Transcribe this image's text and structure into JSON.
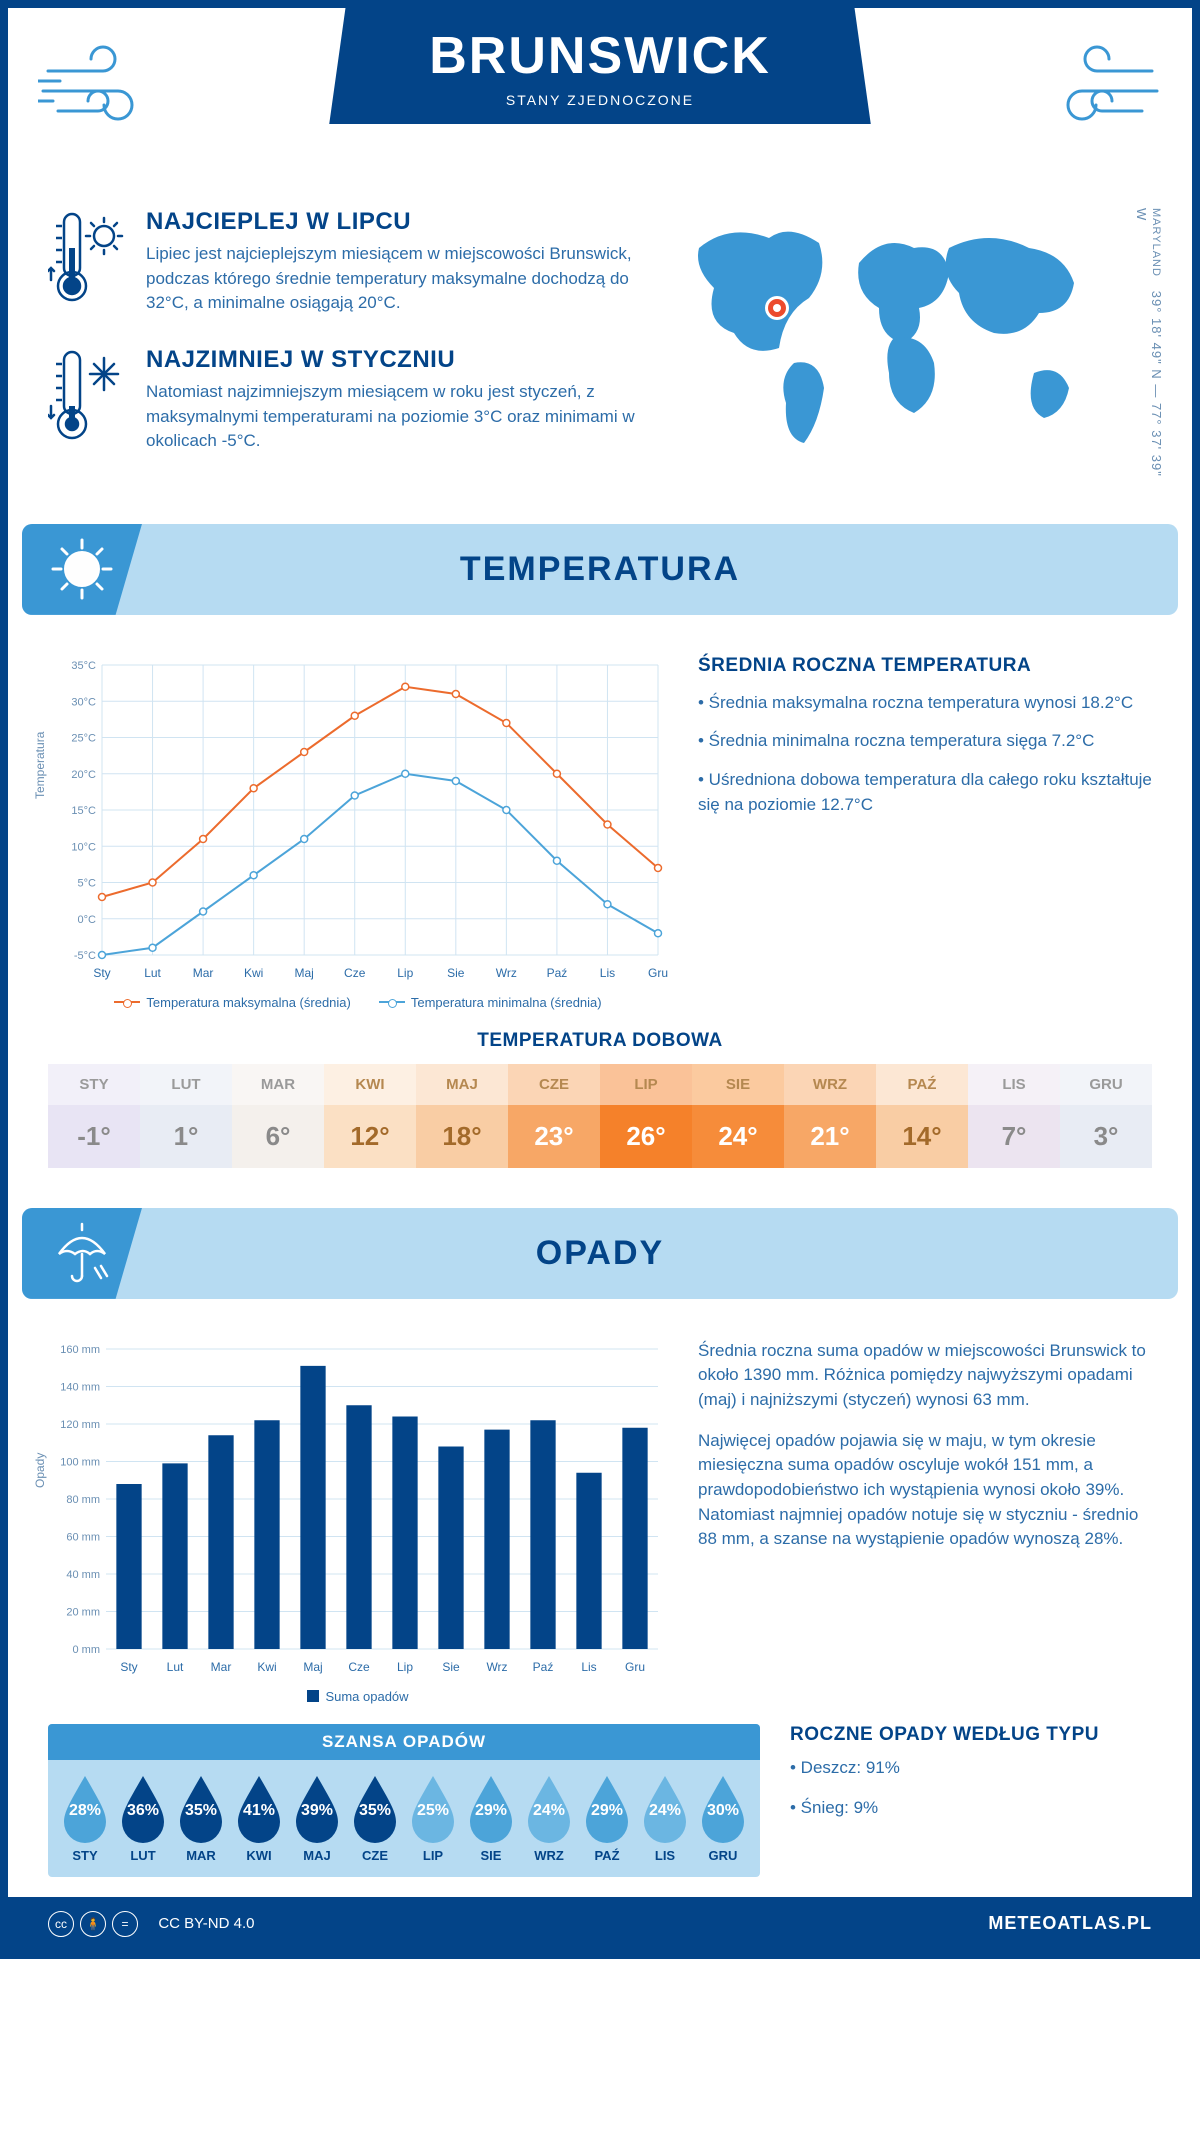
{
  "header": {
    "title": "BRUNSWICK",
    "subtitle": "STANY ZJEDNOCZONE"
  },
  "coords": {
    "state": "MARYLAND",
    "lat": "39° 18' 49\" N",
    "sep": "—",
    "lon": "77° 37' 39\" W"
  },
  "colors": {
    "primary": "#034488",
    "light_blue": "#b6dbf2",
    "mid_blue": "#3a97d4",
    "accent_blue": "#2c6ca8",
    "orange": "#ec6b2d",
    "marker_bg": "#ffffff"
  },
  "info_hot": {
    "title": "NAJCIEPLEJ W LIPCU",
    "text": "Lipiec jest najcieplejszym miesiącem w miejscowości Brunswick, podczas którego średnie temperatury maksymalne dochodzą do 32°C, a minimalne osiągają 20°C."
  },
  "info_cold": {
    "title": "NAJZIMNIEJ W STYCZNIU",
    "text": "Natomiast najzimniejszym miesiącem w roku jest styczeń, z maksymalnymi temperaturami na poziomie 3°C oraz minimami w okolicach -5°C."
  },
  "section_temp": "TEMPERATURA",
  "section_rain": "OPADY",
  "months": [
    "Sty",
    "Lut",
    "Mar",
    "Kwi",
    "Maj",
    "Cze",
    "Lip",
    "Sie",
    "Wrz",
    "Paź",
    "Lis",
    "Gru"
  ],
  "months_upper": [
    "STY",
    "LUT",
    "MAR",
    "KWI",
    "MAJ",
    "CZE",
    "LIP",
    "SIE",
    "WRZ",
    "PAŹ",
    "LIS",
    "GRU"
  ],
  "temp_chart": {
    "type": "line",
    "ylabel": "Temperatura",
    "ylim": [
      -5,
      35
    ],
    "ytick_step": 5,
    "ytick_labels": [
      "-5°C",
      "0°C",
      "5°C",
      "10°C",
      "15°C",
      "20°C",
      "25°C",
      "30°C",
      "35°C"
    ],
    "max_series": [
      3,
      5,
      11,
      18,
      23,
      28,
      32,
      31,
      27,
      20,
      13,
      7
    ],
    "min_series": [
      -5,
      -4,
      1,
      6,
      11,
      17,
      20,
      19,
      15,
      8,
      2,
      -2
    ],
    "max_color": "#ec6b2d",
    "min_color": "#4ca4d9",
    "grid_color": "#d0e4f2",
    "line_width": 2,
    "marker_radius": 3.5,
    "legend_max": "Temperatura maksymalna (średnia)",
    "legend_min": "Temperatura minimalna (średnia)"
  },
  "temp_info": {
    "title": "ŚREDNIA ROCZNA TEMPERATURA",
    "p1": "• Średnia maksymalna roczna temperatura wynosi 18.2°C",
    "p2": "• Średnia minimalna roczna temperatura sięga 7.2°C",
    "p3": "• Uśredniona dobowa temperatura dla całego roku kształtuje się na poziomie 12.7°C"
  },
  "temp_daily": {
    "title": "TEMPERATURA DOBOWA",
    "values": [
      "-1°",
      "1°",
      "6°",
      "12°",
      "18°",
      "23°",
      "26°",
      "24°",
      "21°",
      "14°",
      "7°",
      "3°"
    ],
    "cell_bg": [
      "#e8e4f4",
      "#e8ecf4",
      "#f4f0ec",
      "#fbe0c4",
      "#f9cda4",
      "#f7a766",
      "#f5812a",
      "#f68c3a",
      "#f7a766",
      "#f9cda4",
      "#ece4f0",
      "#e8ecf4"
    ],
    "head_bg": [
      "#f2f0f9",
      "#f2f4f9",
      "#f9f6f4",
      "#fdf0e3",
      "#fce7d4",
      "#fbd5b5",
      "#fac298",
      "#fbca9f",
      "#fbd5b5",
      "#fce7d4",
      "#f5f1f7",
      "#f2f4f9"
    ],
    "text_color": [
      "#8a8a8a",
      "#8a8a8a",
      "#8a8a8a",
      "#a36a2a",
      "#a36a2a",
      "#ffffff",
      "#ffffff",
      "#ffffff",
      "#ffffff",
      "#a36a2a",
      "#8a8a8a",
      "#8a8a8a"
    ],
    "head_text_color": [
      "#9a9a9a",
      "#9a9a9a",
      "#9a9a9a",
      "#b58850",
      "#b58850",
      "#b58850",
      "#b58850",
      "#b58850",
      "#b58850",
      "#b58850",
      "#9a9a9a",
      "#9a9a9a"
    ]
  },
  "rain_chart": {
    "type": "bar",
    "ylabel": "Opady",
    "ylim": [
      0,
      160
    ],
    "ytick_step": 20,
    "ytick_labels": [
      "0 mm",
      "20 mm",
      "40 mm",
      "60 mm",
      "80 mm",
      "100 mm",
      "120 mm",
      "140 mm",
      "160 mm"
    ],
    "values": [
      88,
      99,
      114,
      122,
      151,
      130,
      124,
      108,
      117,
      122,
      94,
      118
    ],
    "bar_color": "#034488",
    "grid_color": "#d0e4f2",
    "bar_width": 0.55,
    "legend": "Suma opadów"
  },
  "rain_info": {
    "p1": "Średnia roczna suma opadów w miejscowości Brunswick to około 1390 mm. Różnica pomiędzy najwyższymi opadami (maj) i najniższymi (styczeń) wynosi 63 mm.",
    "p2": "Najwięcej opadów pojawia się w maju, w tym okresie miesięczna suma opadów oscyluje wokół 151 mm, a prawdopodobieństwo ich wystąpienia wynosi około 39%. Natomiast najmniej opadów notuje się w styczniu - średnio 88 mm, a szanse na wystąpienie opadów wynoszą 28%."
  },
  "rain_chance": {
    "title": "SZANSA OPADÓW",
    "values": [
      "28%",
      "36%",
      "35%",
      "41%",
      "39%",
      "35%",
      "25%",
      "29%",
      "24%",
      "29%",
      "24%",
      "30%"
    ],
    "drop_colors": [
      "#4ca4d9",
      "#034488",
      "#034488",
      "#034488",
      "#034488",
      "#034488",
      "#6bb6e2",
      "#4ca4d9",
      "#6bb6e2",
      "#4ca4d9",
      "#6bb6e2",
      "#4ca4d9"
    ]
  },
  "rain_type": {
    "title": "ROCZNE OPADY WEDŁUG TYPU",
    "p1": "• Deszcz: 91%",
    "p2": "• Śnieg: 9%"
  },
  "footer": {
    "license": "CC BY-ND 4.0",
    "brand": "METEOATLAS.PL"
  }
}
